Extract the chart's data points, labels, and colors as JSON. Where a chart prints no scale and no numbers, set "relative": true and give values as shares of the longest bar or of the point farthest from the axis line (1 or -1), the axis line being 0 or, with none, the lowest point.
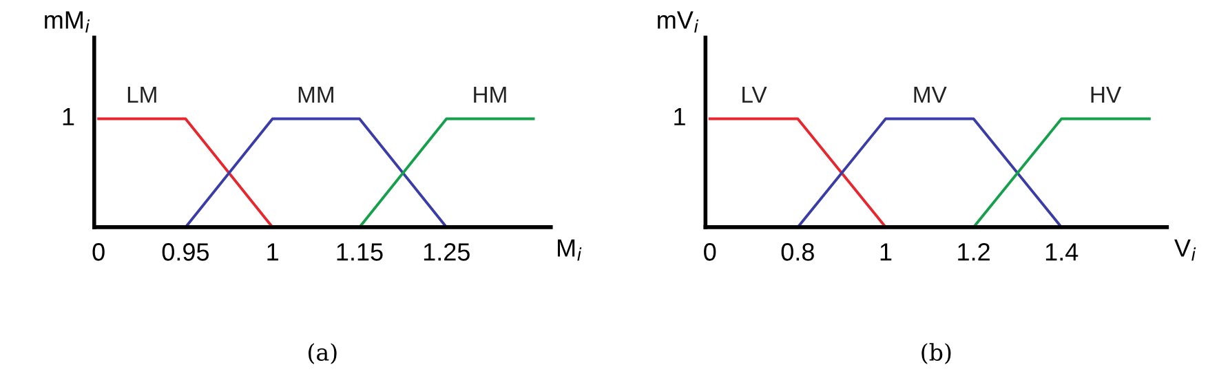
{
  "chart_data": [
    {
      "type": "line",
      "relative": true,
      "xlabel": "M$_{i}$",
      "ylabel": "mM$_{i}$",
      "annotations": [
        "1",
        "(a)"
      ],
      "categories": [
        "0",
        "0.95",
        "1",
        "1.15",
        "1.25",
        null
      ],
      "grid": false,
      "series": [
        {
          "name": "LM",
          "color": "#e8262e",
          "values": [
            1,
            1,
            0,
            null,
            null,
            null
          ]
        },
        {
          "name": "MM",
          "color": "#3a3ca8",
          "values": [
            null,
            0,
            1,
            1,
            0,
            null
          ]
        },
        {
          "name": "HM",
          "color": "#17a04c",
          "values": [
            null,
            null,
            null,
            0,
            1,
            1
          ]
        }
      ]
    },
    {
      "type": "line",
      "relative": true,
      "xlabel": "V$_{i}$",
      "ylabel": "mV$_{i}$",
      "annotations": [
        "1",
        "(b)"
      ],
      "categories": [
        "0",
        "0.8",
        "1",
        "1.2",
        "1.4",
        null
      ],
      "grid": false,
      "series": [
        {
          "name": "LV",
          "color": "#e8262e",
          "values": [
            1,
            1,
            0,
            null,
            null,
            null
          ]
        },
        {
          "name": "MV",
          "color": "#3a3ca8",
          "values": [
            null,
            0,
            1,
            1,
            0,
            null
          ]
        },
        {
          "name": "HV",
          "color": "#17a04c",
          "values": [
            null,
            null,
            null,
            0,
            1,
            1
          ]
        }
      ]
    }
  ]
}
